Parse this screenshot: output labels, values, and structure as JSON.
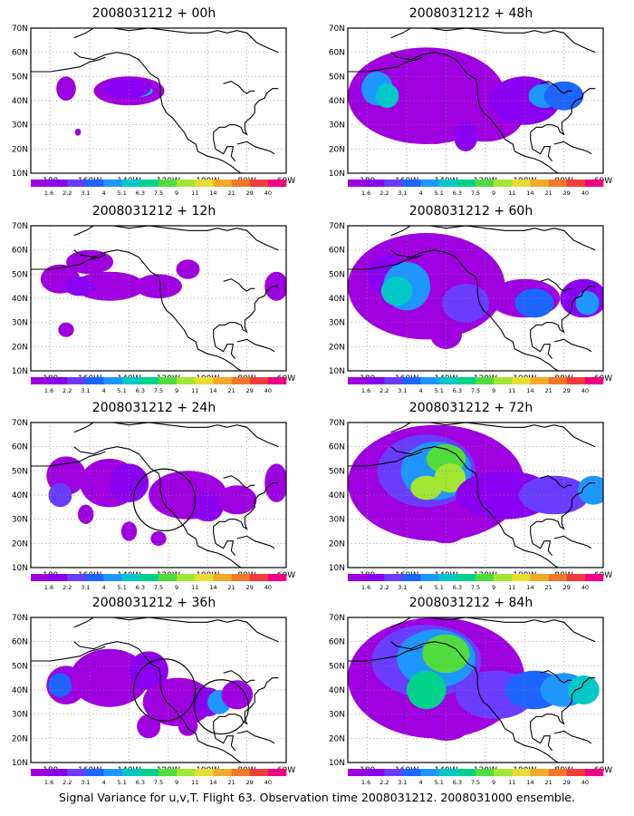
{
  "panels": [
    {
      "title": "2008031212 + 00h"
    },
    {
      "title": "2008031212 + 48h"
    },
    {
      "title": "2008031212 + 12h"
    },
    {
      "title": "2008031212 + 60h"
    },
    {
      "title": "2008031212 + 24h"
    },
    {
      "title": "2008031212 + 72h"
    },
    {
      "title": "2008031212 + 36h"
    },
    {
      "title": "2008031212 + 84h"
    }
  ],
  "axes": {
    "lat_labels": [
      "10N",
      "20N",
      "30N",
      "40N",
      "50N",
      "60N",
      "70N"
    ],
    "lon_labels": [
      "180",
      "160W",
      "140W",
      "120W",
      "100W",
      "80W",
      "60W"
    ]
  },
  "colorbar": {
    "labels": [
      "1.6",
      "2.2",
      "3.1",
      "4",
      "5.1",
      "6.3",
      "7.5",
      "9",
      "11",
      "14",
      "21",
      "29",
      "40"
    ],
    "colors": [
      "#9e00e0",
      "#8a00f0",
      "#6a3cff",
      "#1e64ff",
      "#1e96ff",
      "#00c8c8",
      "#00d28c",
      "#50dc3c",
      "#a0e632",
      "#e6dc32",
      "#f0aa28",
      "#f07828",
      "#f03c3c",
      "#f00082"
    ]
  },
  "footer": "Signal Variance for u,v,T. Flight 63. Observation time 2008031212. 2008031000 ensemble."
}
